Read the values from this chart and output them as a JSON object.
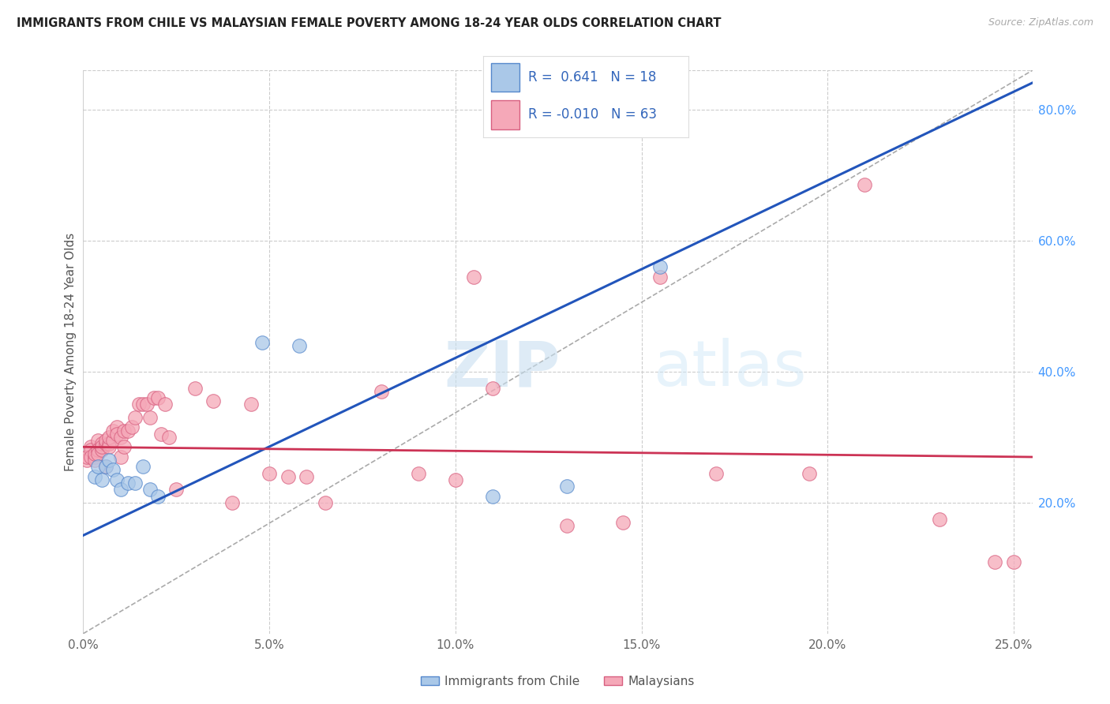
{
  "title": "IMMIGRANTS FROM CHILE VS MALAYSIAN FEMALE POVERTY AMONG 18-24 YEAR OLDS CORRELATION CHART",
  "source": "Source: ZipAtlas.com",
  "ylabel": "Female Poverty Among 18-24 Year Olds",
  "xlim": [
    0.0,
    0.255
  ],
  "ylim": [
    0.0,
    0.86
  ],
  "xtick_vals": [
    0.0,
    0.05,
    0.1,
    0.15,
    0.2,
    0.25
  ],
  "xtick_labels": [
    "0.0%",
    "5.0%",
    "10.0%",
    "15.0%",
    "20.0%",
    "25.0%"
  ],
  "ytick_vals_right": [
    0.2,
    0.4,
    0.6,
    0.8
  ],
  "ytick_labels_right": [
    "20.0%",
    "40.0%",
    "60.0%",
    "80.0%"
  ],
  "chile_color": "#aac8e8",
  "chile_edge": "#5588cc",
  "malaysia_color": "#f5a8b8",
  "malaysia_edge": "#d86080",
  "trend_chile": "#2255bb",
  "trend_malaysia": "#cc3355",
  "r_chile": 0.641,
  "n_chile": 18,
  "r_malaysia": -0.01,
  "n_malaysia": 63,
  "legend_label_chile": "Immigrants from Chile",
  "legend_label_malaysia": "Malaysians",
  "watermark_zip": "ZIP",
  "watermark_atlas": "atlas",
  "grid_color": "#cccccc",
  "bg": "#ffffff",
  "chile_x": [
    0.003,
    0.004,
    0.005,
    0.006,
    0.007,
    0.008,
    0.009,
    0.01,
    0.012,
    0.014,
    0.016,
    0.018,
    0.02,
    0.048,
    0.058,
    0.11,
    0.13,
    0.155
  ],
  "chile_y": [
    0.24,
    0.255,
    0.235,
    0.255,
    0.265,
    0.25,
    0.235,
    0.22,
    0.23,
    0.23,
    0.255,
    0.22,
    0.21,
    0.445,
    0.44,
    0.21,
    0.225,
    0.56
  ],
  "malaysia_x": [
    0.001,
    0.001,
    0.002,
    0.002,
    0.002,
    0.003,
    0.003,
    0.003,
    0.004,
    0.004,
    0.004,
    0.005,
    0.005,
    0.005,
    0.006,
    0.006,
    0.006,
    0.007,
    0.007,
    0.007,
    0.008,
    0.008,
    0.009,
    0.009,
    0.01,
    0.01,
    0.011,
    0.011,
    0.012,
    0.013,
    0.014,
    0.015,
    0.016,
    0.017,
    0.018,
    0.019,
    0.02,
    0.021,
    0.022,
    0.023,
    0.025,
    0.03,
    0.035,
    0.04,
    0.045,
    0.05,
    0.055,
    0.06,
    0.065,
    0.08,
    0.09,
    0.1,
    0.105,
    0.11,
    0.13,
    0.145,
    0.155,
    0.17,
    0.195,
    0.21,
    0.23,
    0.245,
    0.25
  ],
  "malaysia_y": [
    0.265,
    0.27,
    0.285,
    0.28,
    0.27,
    0.27,
    0.265,
    0.275,
    0.295,
    0.28,
    0.275,
    0.28,
    0.29,
    0.285,
    0.29,
    0.295,
    0.255,
    0.29,
    0.285,
    0.3,
    0.295,
    0.31,
    0.315,
    0.305,
    0.3,
    0.27,
    0.31,
    0.285,
    0.31,
    0.315,
    0.33,
    0.35,
    0.35,
    0.35,
    0.33,
    0.36,
    0.36,
    0.305,
    0.35,
    0.3,
    0.22,
    0.375,
    0.355,
    0.2,
    0.35,
    0.245,
    0.24,
    0.24,
    0.2,
    0.37,
    0.245,
    0.235,
    0.545,
    0.375,
    0.165,
    0.17,
    0.545,
    0.245,
    0.245,
    0.685,
    0.175,
    0.11,
    0.11
  ]
}
